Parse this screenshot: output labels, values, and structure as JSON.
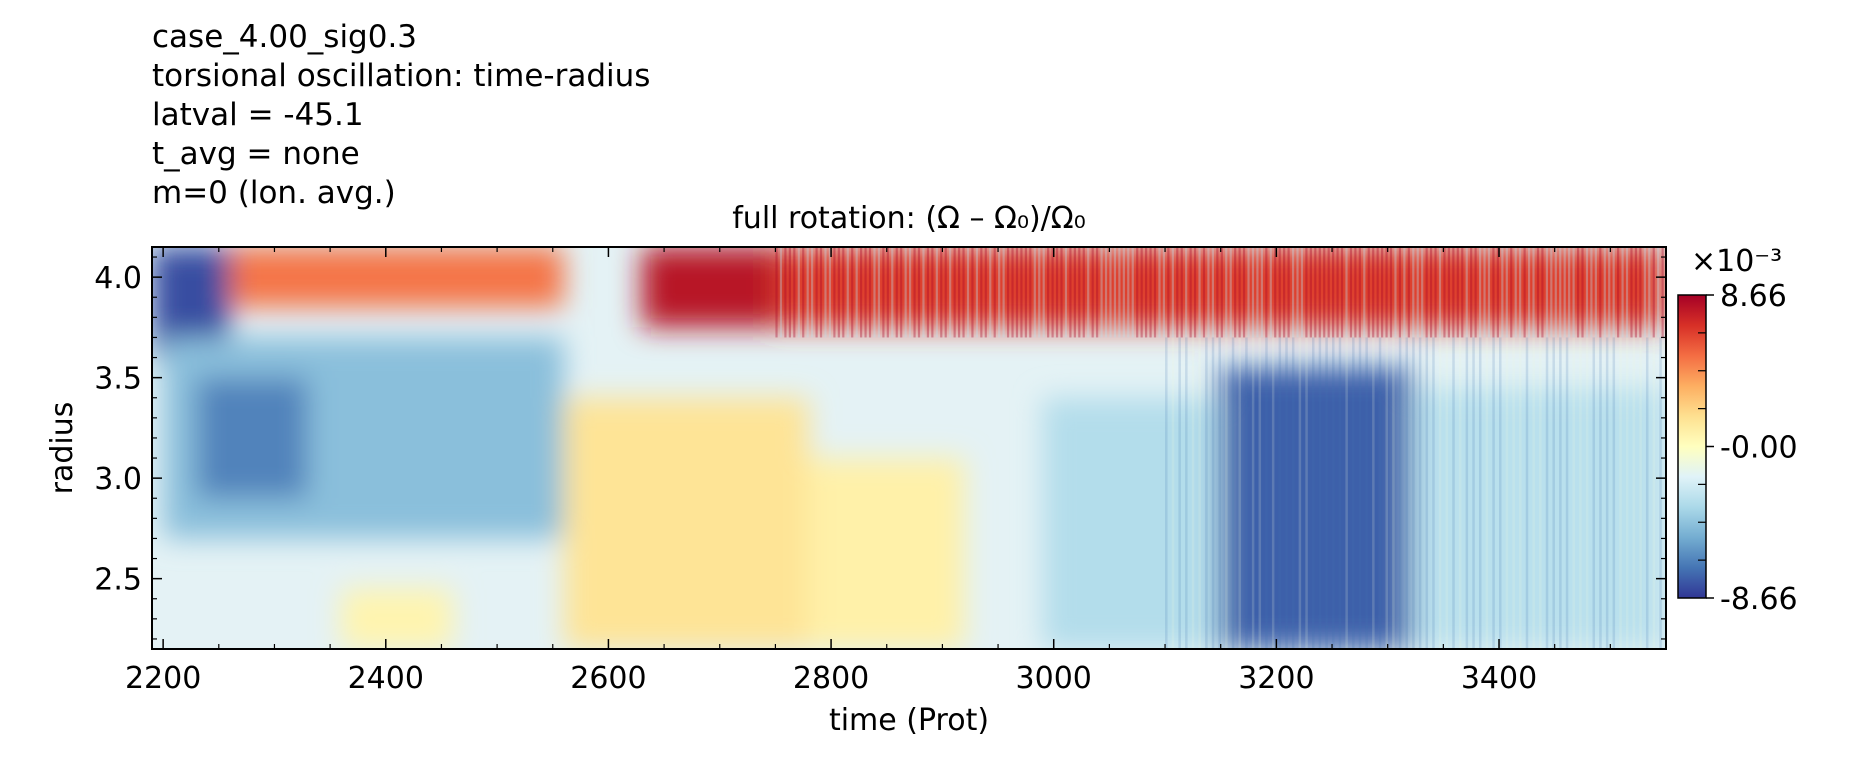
{
  "header": {
    "lines": [
      "case_4.00_sig0.3",
      "torsional oscillation: time-radius",
      "latval = -45.1",
      "t_avg = none",
      "m=0 (lon. avg.)"
    ]
  },
  "chart_data": {
    "type": "heatmap",
    "title": "full rotation: (Ω – Ω₀)/Ω₀",
    "xlabel": "time (Prot)",
    "ylabel": "radius",
    "xlim": [
      2190,
      3550
    ],
    "ylim": [
      2.15,
      4.15
    ],
    "x_ticks": [
      2200,
      2400,
      2600,
      2800,
      3000,
      3200,
      3400
    ],
    "x_tick_labels": [
      "2200",
      "2400",
      "2600",
      "2800",
      "3000",
      "3200",
      "3400"
    ],
    "y_ticks": [
      2.5,
      3.0,
      3.5,
      4.0
    ],
    "y_tick_labels": [
      "2.5",
      "3.0",
      "3.5",
      "4.0"
    ],
    "colorbar": {
      "exponent_label": "×10⁻³",
      "min": -8.66,
      "max": 8.66,
      "tick_labels": [
        "8.66",
        "-0.00",
        "-8.66"
      ],
      "colormap": "RdYlBu_r",
      "colors": [
        "#313695",
        "#4575b4",
        "#74add1",
        "#abd9e9",
        "#e0f3f8",
        "#ffffbf",
        "#fee090",
        "#fdae61",
        "#f46d43",
        "#d73027",
        "#a50026"
      ]
    },
    "regions": [
      {
        "t0": 2190,
        "t1": 2260,
        "r0": 3.6,
        "r1": 4.15,
        "value": -8.0
      },
      {
        "t0": 2260,
        "t1": 2560,
        "r0": 3.85,
        "r1": 4.15,
        "value": 5.0
      },
      {
        "t0": 2200,
        "t1": 2560,
        "r0": 2.7,
        "r1": 3.7,
        "value": -4.5
      },
      {
        "t0": 2230,
        "t1": 2330,
        "r0": 2.9,
        "r1": 3.5,
        "value": -6.5
      },
      {
        "t0": 2360,
        "t1": 2460,
        "r0": 2.15,
        "r1": 2.45,
        "value": 0.6
      },
      {
        "t0": 2560,
        "t1": 2780,
        "r0": 2.15,
        "r1": 3.4,
        "value": 1.5
      },
      {
        "t0": 2630,
        "t1": 2750,
        "r0": 3.75,
        "r1": 4.15,
        "value": 8.0
      },
      {
        "t0": 2750,
        "t1": 3550,
        "r0": 3.75,
        "r1": 4.15,
        "value": 6.5
      },
      {
        "t0": 2780,
        "t1": 2920,
        "r0": 2.15,
        "r1": 3.1,
        "value": 0.8
      },
      {
        "t0": 3150,
        "t1": 3320,
        "r0": 2.15,
        "r1": 3.55,
        "value": -7.5
      },
      {
        "t0": 3320,
        "t1": 3550,
        "r0": 2.15,
        "r1": 3.45,
        "value": -3.0
      },
      {
        "t0": 2990,
        "t1": 3150,
        "r0": 2.15,
        "r1": 3.4,
        "value": -3.2
      }
    ]
  }
}
